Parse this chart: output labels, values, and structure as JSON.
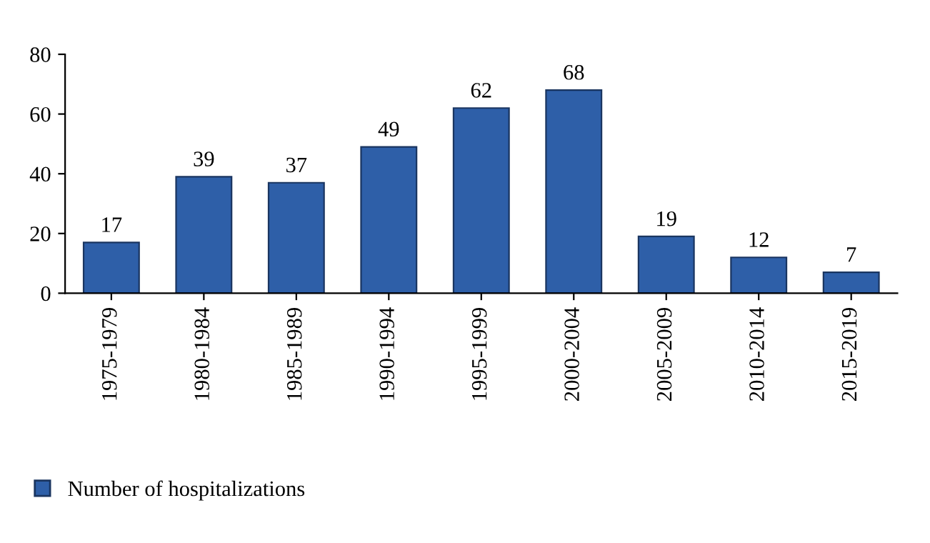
{
  "chart_data": {
    "type": "bar",
    "categories": [
      "1975-1979",
      "1980-1984",
      "1985-1989",
      "1990-1994",
      "1995-1999",
      "2000-2004",
      "2005-2009",
      "2010-2014",
      "2015-2019"
    ],
    "series": [
      {
        "name": "Number of hospitalizations",
        "color": "#2e5fa8",
        "values": [
          17,
          39,
          37,
          49,
          62,
          68,
          19,
          12,
          7
        ]
      }
    ],
    "ylim": [
      0,
      80
    ],
    "yticks": [
      0,
      20,
      40,
      60,
      80
    ],
    "data_labels": true,
    "legend": "bottom left",
    "grid": false
  }
}
